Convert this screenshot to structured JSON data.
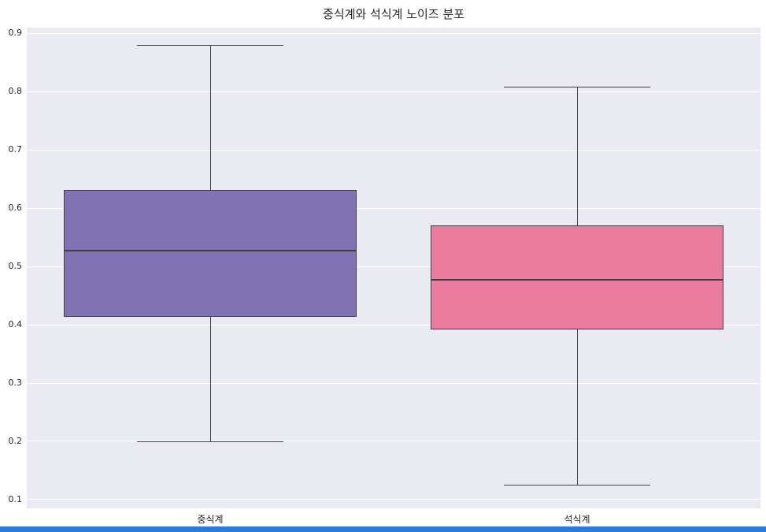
{
  "figure": {
    "background": "#ffffff",
    "plot_background": "#eaeaf2",
    "grid_color": "#ffffff",
    "tick_color": "#262626",
    "bottom_bar_color": "#2b7bd9"
  },
  "chart_data": {
    "type": "box",
    "title": "중식계와 석식계 노이즈 분포",
    "categories": [
      "중식계",
      "석식계"
    ],
    "xlabel": "",
    "ylabel": "",
    "ylim": [
      0.085,
      0.91
    ],
    "yticks": [
      0.1,
      0.2,
      0.3,
      0.4,
      0.5,
      0.6,
      0.7,
      0.8,
      0.9
    ],
    "grid": true,
    "legend": false,
    "box_width_fraction": 0.8,
    "edge_color": "#3f3f3f",
    "series": [
      {
        "name": "중식계",
        "color": "#8172b3",
        "whisker_low": 0.199,
        "q1": 0.413,
        "median": 0.527,
        "q3": 0.632,
        "whisker_high": 0.879
      },
      {
        "name": "석식계",
        "color": "#ec7ba0",
        "whisker_low": 0.125,
        "q1": 0.392,
        "median": 0.477,
        "q3": 0.57,
        "whisker_high": 0.808
      }
    ]
  }
}
